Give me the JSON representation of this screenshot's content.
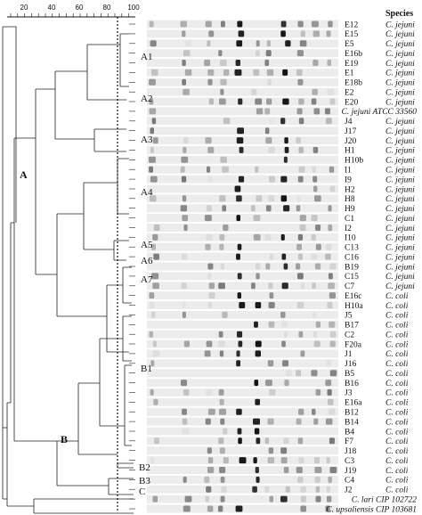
{
  "scale": {
    "ticks": [
      "20",
      "40",
      "60",
      "80",
      "100"
    ],
    "cutoff": 87
  },
  "header": {
    "species_label": "Species"
  },
  "clusters": [
    {
      "id": "A1",
      "label": "A1"
    },
    {
      "id": "A2",
      "label": "A2"
    },
    {
      "id": "A3",
      "label": "A3"
    },
    {
      "id": "A4",
      "label": "A4"
    },
    {
      "id": "A5",
      "label": "A5"
    },
    {
      "id": "A6",
      "label": "A6"
    },
    {
      "id": "A7",
      "label": "A7"
    },
    {
      "id": "B1",
      "label": "B1"
    },
    {
      "id": "B2",
      "label": "B2"
    },
    {
      "id": "B3",
      "label": "B3"
    },
    {
      "id": "C",
      "label": "C"
    },
    {
      "id": "A",
      "label": "A"
    },
    {
      "id": "B",
      "label": "B"
    }
  ],
  "strains": [
    {
      "id": "E12",
      "species": "C. jejuni"
    },
    {
      "id": "E15",
      "species": "C. jejuni"
    },
    {
      "id": "E5",
      "species": "C. jejuni"
    },
    {
      "id": "E16b",
      "species": "C. jejuni"
    },
    {
      "id": "E19",
      "species": "C. jejuni"
    },
    {
      "id": "E1",
      "species": "C. jejuni"
    },
    {
      "id": "E18b",
      "species": "C. jejuni"
    },
    {
      "id": "E2",
      "species": "C. jejuni"
    },
    {
      "id": "E20",
      "species": "C. jejuni"
    },
    {
      "id": "",
      "species": "C. jejuni ATCC 33560"
    },
    {
      "id": "J4",
      "species": "C. jejuni"
    },
    {
      "id": "J17",
      "species": "C. jejuni"
    },
    {
      "id": "J20",
      "species": "C. jejuni"
    },
    {
      "id": "H1",
      "species": "C. jejuni"
    },
    {
      "id": "H10b",
      "species": "C. jejuni"
    },
    {
      "id": "I1",
      "species": "C. jejuni"
    },
    {
      "id": "I9",
      "species": "C. jejuni"
    },
    {
      "id": "H2",
      "species": "C. jejuni"
    },
    {
      "id": "H8",
      "species": "C. jejuni"
    },
    {
      "id": "H9",
      "species": "C. jejuni"
    },
    {
      "id": "C1",
      "species": "C. jejuni"
    },
    {
      "id": "I2",
      "species": "C. jejuni"
    },
    {
      "id": "I10",
      "species": "C. jejuni"
    },
    {
      "id": "C13",
      "species": "C. jejuni"
    },
    {
      "id": "C16",
      "species": "C. jejuni"
    },
    {
      "id": "B19",
      "species": "C. jejuni"
    },
    {
      "id": "C15",
      "species": "C. jejuni"
    },
    {
      "id": "C7",
      "species": "C. jejuni"
    },
    {
      "id": "E16c",
      "species": "C. coli"
    },
    {
      "id": "H10a",
      "species": "C. coli"
    },
    {
      "id": "J5",
      "species": "C. coli"
    },
    {
      "id": "B17",
      "species": "C. coli"
    },
    {
      "id": "C2",
      "species": "C. coli"
    },
    {
      "id": "F20a",
      "species": "C. coli"
    },
    {
      "id": "J1",
      "species": "C. coli"
    },
    {
      "id": "J16",
      "species": "C. coli"
    },
    {
      "id": "B5",
      "species": "C. coli"
    },
    {
      "id": "B16",
      "species": "C. coli"
    },
    {
      "id": "J3",
      "species": "C. coli"
    },
    {
      "id": "E16a",
      "species": "C. coli"
    },
    {
      "id": "B12",
      "species": "C. coli"
    },
    {
      "id": "B14",
      "species": "C. coli"
    },
    {
      "id": "B4",
      "species": "C. coli"
    },
    {
      "id": "F7",
      "species": "C. coli"
    },
    {
      "id": "J18",
      "species": "C. coli"
    },
    {
      "id": "C3",
      "species": "C. coli"
    },
    {
      "id": "J19",
      "species": "C. coli"
    },
    {
      "id": "C4",
      "species": "C. coli"
    },
    {
      "id": "J2",
      "species": "C. coli"
    },
    {
      "id": "",
      "species": "C. lari CIP 102722"
    },
    {
      "id": "",
      "species": "C. upsaliensis CIP 103681"
    }
  ]
}
